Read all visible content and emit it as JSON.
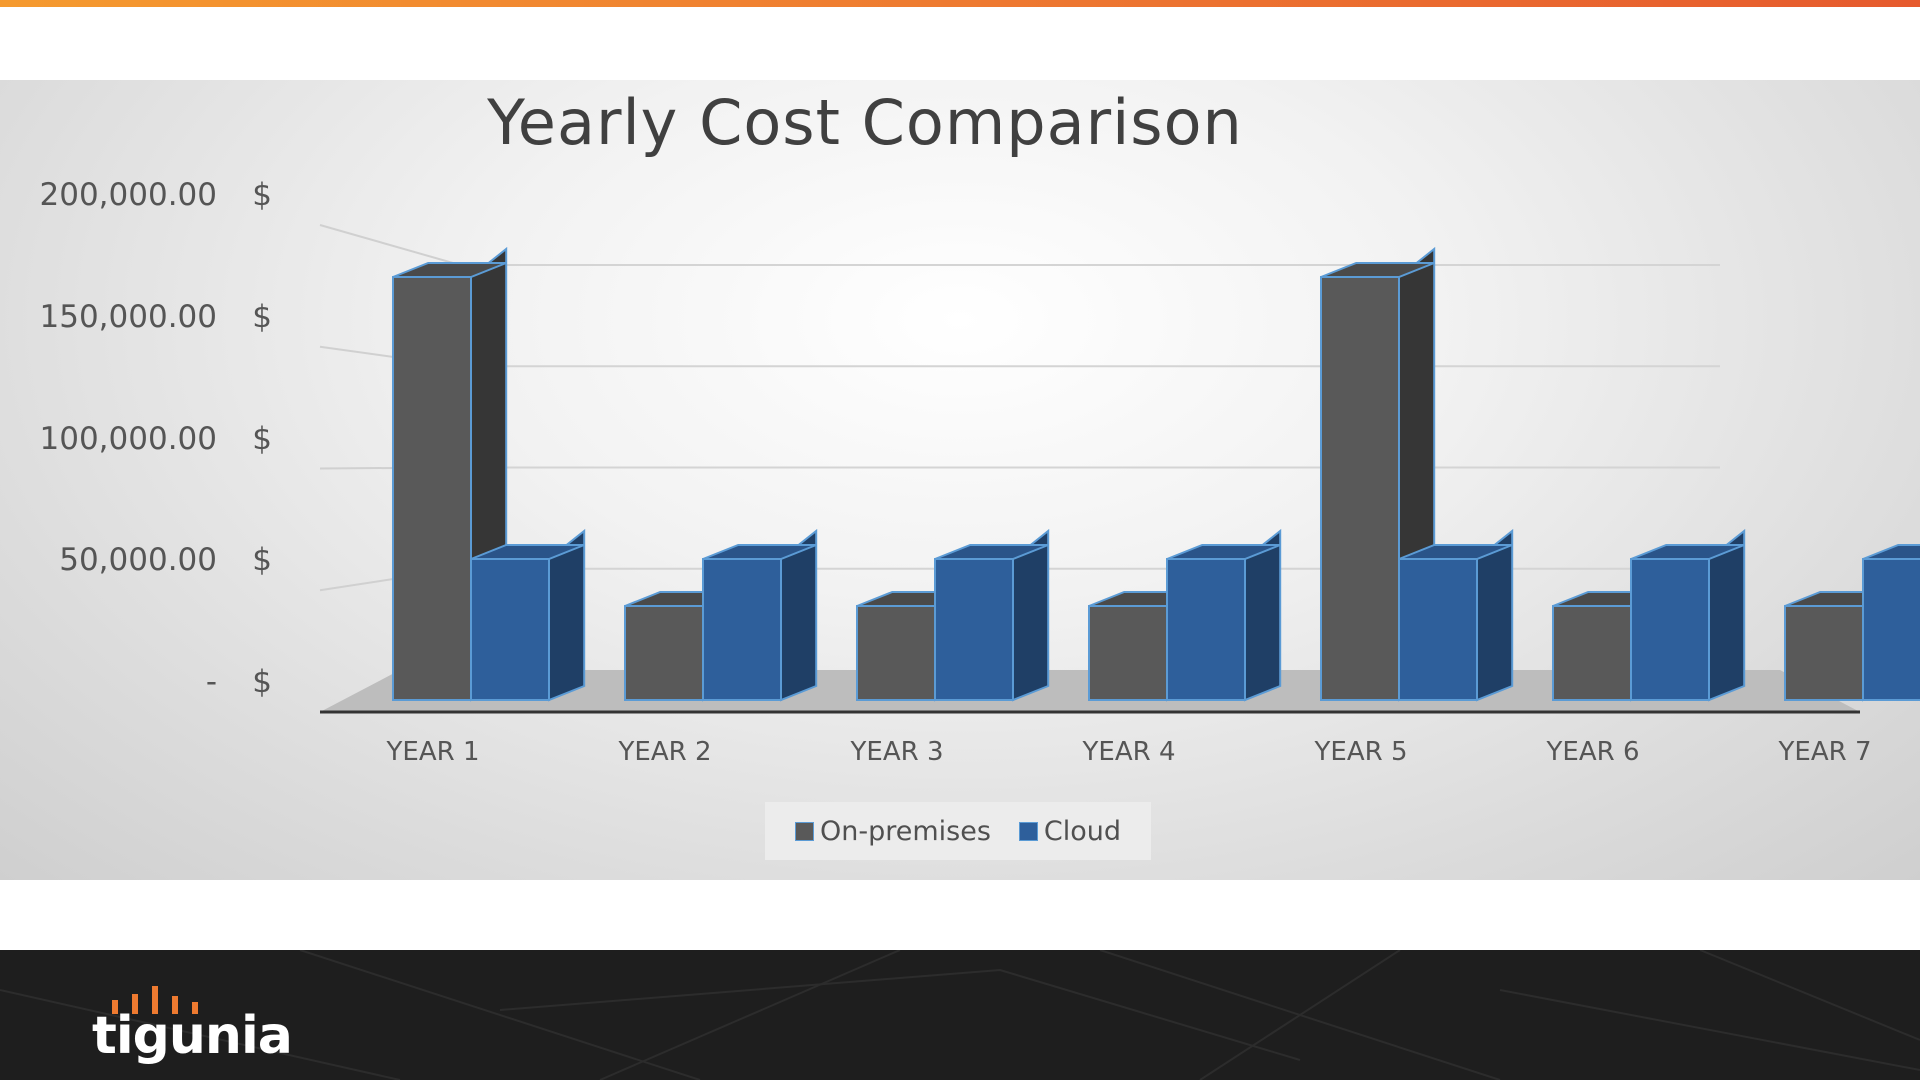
{
  "colors": {
    "accent_stripe": "#ee7a30",
    "on_premises": "#595959",
    "cloud": "#2e5f9b",
    "footer_bg": "#1e1e1e"
  },
  "chart_data": {
    "type": "bar",
    "style": "3d-clustered-column",
    "title": "Yearly Cost Comparison",
    "xlabel": "",
    "ylabel": "",
    "categories": [
      "YEAR 1",
      "YEAR 2",
      "YEAR 3",
      "YEAR 4",
      "YEAR 5",
      "YEAR 6",
      "YEAR 7"
    ],
    "series": [
      {
        "name": "On-premises",
        "values": [
          180000,
          40000,
          40000,
          40000,
          180000,
          40000,
          40000
        ]
      },
      {
        "name": "Cloud",
        "values": [
          60000,
          60000,
          60000,
          60000,
          60000,
          60000,
          60000
        ]
      }
    ],
    "ylim": [
      0,
      200000
    ],
    "yticks": [
      {
        "num": "200,000.00",
        "cur": "$"
      },
      {
        "num": "150,000.00",
        "cur": "$"
      },
      {
        "num": "100,000.00",
        "cur": "$"
      },
      {
        "num": "50,000.00",
        "cur": "$"
      },
      {
        "num": "-",
        "cur": "$"
      }
    ],
    "grid": true,
    "legend_position": "bottom"
  },
  "footer": {
    "logo_text": "tigunia",
    "logo_icon": "equalizer-bars-icon"
  }
}
